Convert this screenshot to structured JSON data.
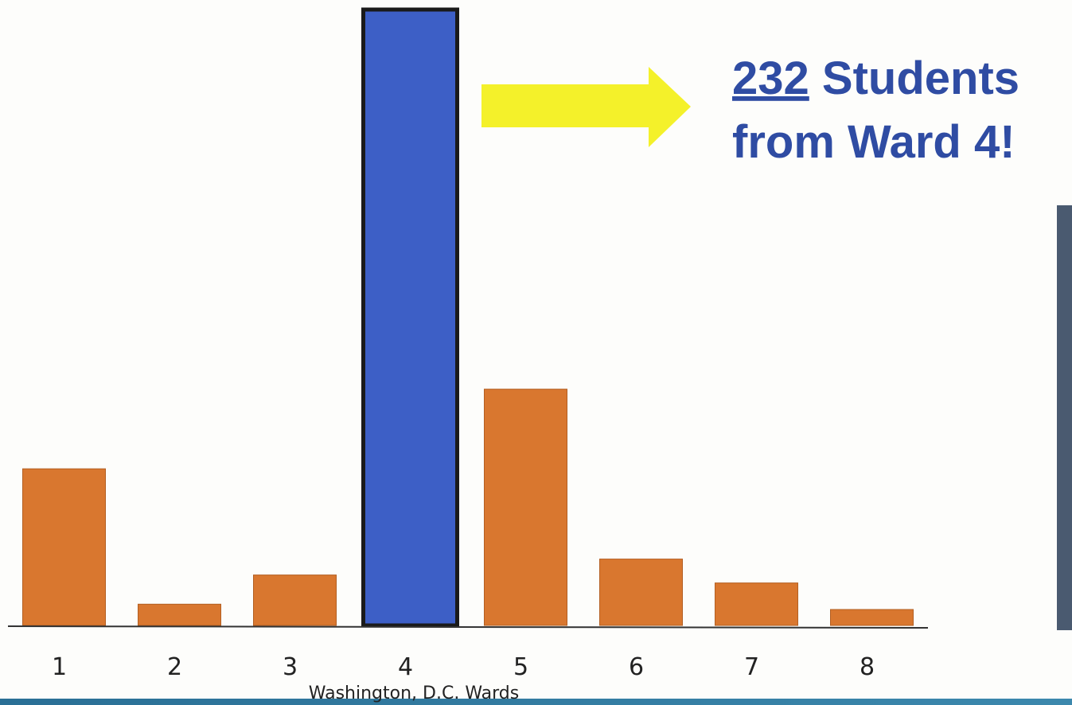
{
  "chart_data": {
    "type": "bar",
    "categories": [
      "1",
      "2",
      "3",
      "4",
      "5",
      "6",
      "7",
      "8"
    ],
    "values": [
      59,
      8,
      19,
      232,
      89,
      25,
      16,
      6
    ],
    "colors": [
      "#d9772f",
      "#d9772f",
      "#d9772f",
      "#3d5fc6",
      "#d9772f",
      "#d9772f",
      "#d9772f",
      "#d9772f"
    ],
    "xlabel": "Washington, D.C. Wards",
    "annotation": {
      "rest": " Students",
      "line2": "from Ward 4!",
      "color": "#2f4ca3"
    }
  }
}
